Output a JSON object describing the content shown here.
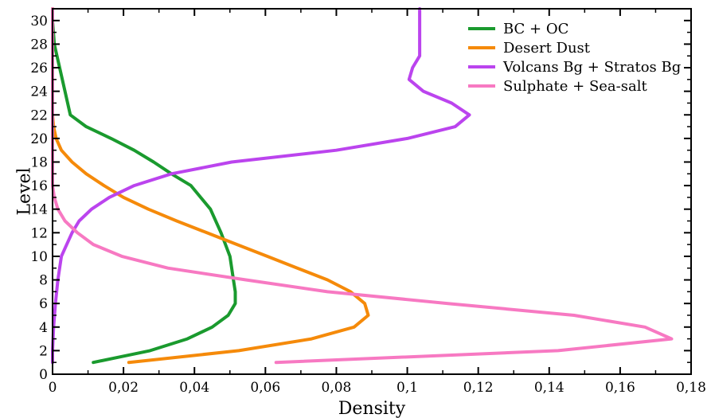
{
  "chart_data": {
    "type": "line",
    "title": "",
    "xlabel": "Density",
    "ylabel": "Level",
    "xlim": [
      0,
      0.18
    ],
    "ylim": [
      0,
      31
    ],
    "grid": false,
    "legend_position": "top-right",
    "x_ticks": [
      0,
      0.02,
      0.04,
      0.06,
      0.08,
      0.1,
      0.12,
      0.14,
      0.16,
      0.18
    ],
    "x_tick_labels": [
      "0",
      "0,02",
      "0,04",
      "0,06",
      "0,08",
      "0,1",
      "0,12",
      "0,14",
      "0,16",
      "0,18"
    ],
    "y_ticks": [
      0,
      2,
      4,
      6,
      8,
      10,
      12,
      14,
      16,
      18,
      20,
      22,
      24,
      26,
      28,
      30
    ],
    "y_tick_labels": [
      "0",
      "2",
      "4",
      "6",
      "8",
      "10",
      "12",
      "14",
      "16",
      "18",
      "20",
      "22",
      "24",
      "26",
      "28",
      "30"
    ],
    "series": [
      {
        "name": "BC + OC",
        "color": "#1a9a2e",
        "points": [
          [
            0.0115,
            1
          ],
          [
            0.0195,
            1.5
          ],
          [
            0.0275,
            2
          ],
          [
            0.038,
            3
          ],
          [
            0.045,
            4
          ],
          [
            0.0495,
            5
          ],
          [
            0.0515,
            6
          ],
          [
            0.0515,
            7
          ],
          [
            0.051,
            8
          ],
          [
            0.05,
            10
          ],
          [
            0.0475,
            12
          ],
          [
            0.0445,
            14
          ],
          [
            0.039,
            16
          ],
          [
            0.0335,
            17
          ],
          [
            0.0285,
            18
          ],
          [
            0.023,
            19
          ],
          [
            0.0165,
            20
          ],
          [
            0.0095,
            21
          ],
          [
            0.005,
            22
          ],
          [
            0.0035,
            24
          ],
          [
            0.002,
            26
          ],
          [
            0.0005,
            28
          ],
          [
            0,
            30
          ],
          [
            0,
            31
          ]
        ]
      },
      {
        "name": "Desert Dust",
        "color": "#f58a0a",
        "points": [
          [
            0.0215,
            1
          ],
          [
            0.0525,
            2
          ],
          [
            0.073,
            3
          ],
          [
            0.085,
            4
          ],
          [
            0.089,
            5
          ],
          [
            0.088,
            6
          ],
          [
            0.084,
            7
          ],
          [
            0.0775,
            8
          ],
          [
            0.069,
            9
          ],
          [
            0.0605,
            10
          ],
          [
            0.052,
            11
          ],
          [
            0.0435,
            12
          ],
          [
            0.035,
            13
          ],
          [
            0.027,
            14
          ],
          [
            0.02,
            15
          ],
          [
            0.0145,
            16
          ],
          [
            0.0095,
            17
          ],
          [
            0.0055,
            18
          ],
          [
            0.0025,
            19
          ],
          [
            0.001,
            20
          ],
          [
            0.0003,
            21
          ],
          [
            0,
            22
          ],
          [
            0,
            24
          ],
          [
            0,
            31
          ]
        ]
      },
      {
        "name": "Volcans Bg + Stratos Bg",
        "color": "#bb44ee",
        "points": [
          [
            0,
            1
          ],
          [
            0,
            2
          ],
          [
            0.0003,
            4
          ],
          [
            0.0008,
            6
          ],
          [
            0.0015,
            8
          ],
          [
            0.0025,
            10
          ],
          [
            0.004,
            11
          ],
          [
            0.0055,
            12
          ],
          [
            0.0075,
            13
          ],
          [
            0.011,
            14
          ],
          [
            0.016,
            15
          ],
          [
            0.023,
            16
          ],
          [
            0.0335,
            17
          ],
          [
            0.0505,
            18
          ],
          [
            0.08,
            19
          ],
          [
            0.1,
            20
          ],
          [
            0.1135,
            21
          ],
          [
            0.1175,
            22
          ],
          [
            0.1125,
            23
          ],
          [
            0.1045,
            24
          ],
          [
            0.1005,
            25
          ],
          [
            0.1015,
            26
          ],
          [
            0.1035,
            27
          ],
          [
            0.1035,
            28
          ],
          [
            0.1035,
            29
          ],
          [
            0.1035,
            30
          ],
          [
            0.1035,
            31
          ]
        ]
      },
      {
        "name": "Sulphate + Sea-salt",
        "color": "#f779c2",
        "points": [
          [
            0.063,
            1
          ],
          [
            0.1425,
            2
          ],
          [
            0.1745,
            3
          ],
          [
            0.167,
            4
          ],
          [
            0.147,
            5
          ],
          [
            0.1115,
            6
          ],
          [
            0.0775,
            7
          ],
          [
            0.0545,
            8
          ],
          [
            0.0325,
            9
          ],
          [
            0.0195,
            10
          ],
          [
            0.0115,
            11
          ],
          [
            0.007,
            12
          ],
          [
            0.0035,
            13
          ],
          [
            0.0015,
            14
          ],
          [
            0.0005,
            15
          ],
          [
            0,
            16
          ],
          [
            0,
            18
          ],
          [
            0,
            20
          ],
          [
            0,
            22
          ],
          [
            0,
            24
          ],
          [
            0,
            26
          ],
          [
            0,
            28
          ],
          [
            0,
            30
          ],
          [
            0,
            31
          ]
        ]
      }
    ]
  }
}
